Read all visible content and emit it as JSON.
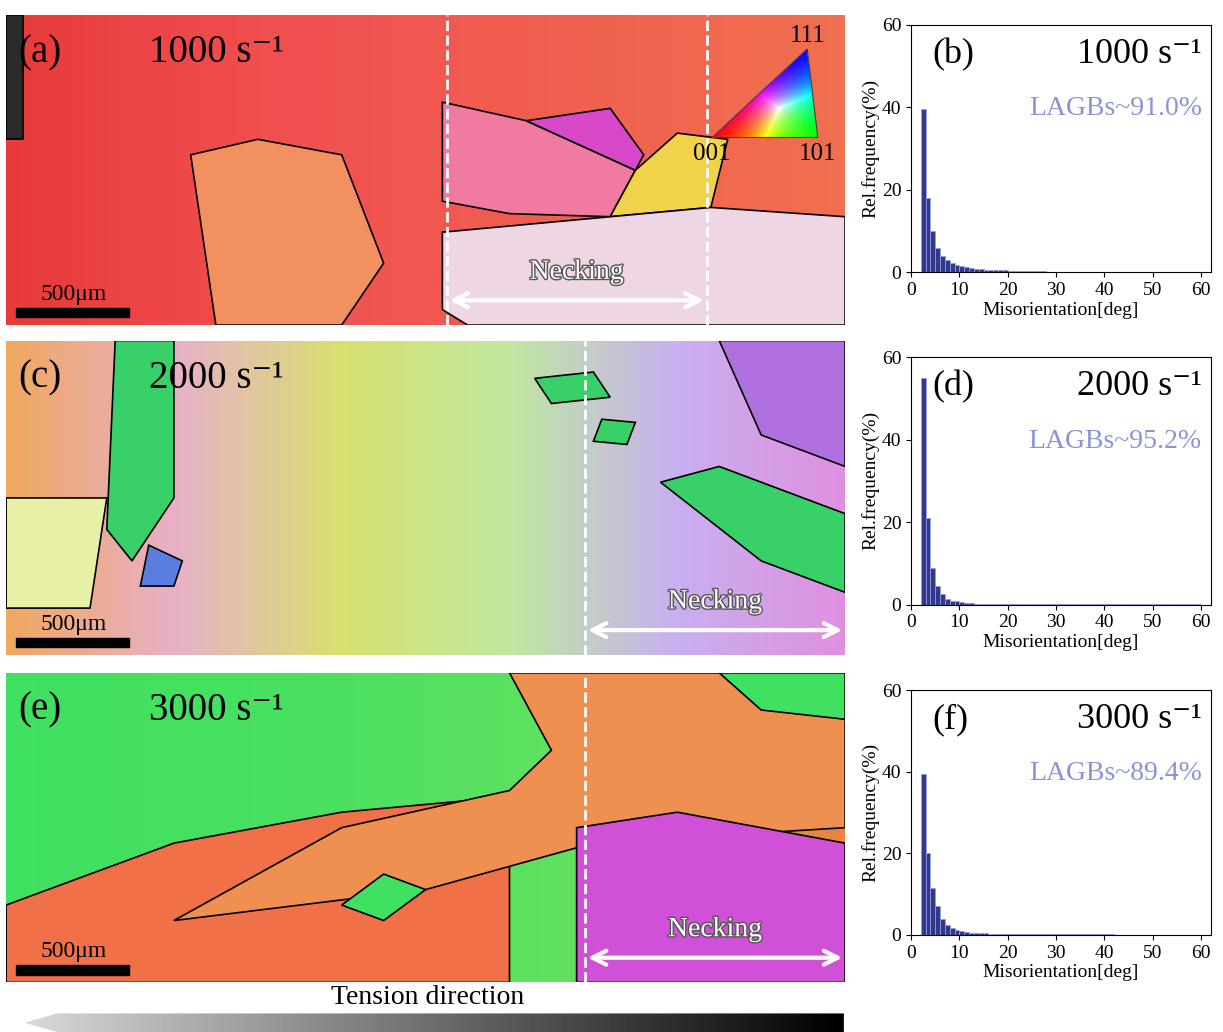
{
  "chart_data": [
    {
      "type": "histogram",
      "title": "(b)",
      "subtitle": "1000 s⁻¹",
      "annotation": "LAGBs~91.0%",
      "xlabel": "Misorientation[deg]",
      "ylabel": "Rel.frequency(%)",
      "bins": [
        2,
        3,
        4,
        5,
        6,
        7,
        8,
        9,
        10,
        11,
        12,
        13,
        14,
        15,
        16,
        17,
        18,
        19,
        20,
        21,
        22,
        23,
        24,
        25,
        26,
        27,
        28,
        29,
        30,
        31,
        32,
        33,
        34,
        35,
        36,
        37,
        38,
        39,
        40,
        41,
        42,
        43,
        44,
        45,
        46,
        47,
        48,
        49,
        50,
        51,
        52,
        53,
        54,
        55,
        56,
        57,
        58,
        59,
        60
      ],
      "values": [
        39.5,
        18,
        10,
        6,
        4,
        3,
        2.3,
        1.8,
        1.5,
        1.2,
        1.0,
        0.9,
        0.8,
        0.7,
        0.6,
        0.6,
        0.5,
        0.5,
        0.4,
        0.4,
        0.4,
        0.3,
        0.3,
        0.3,
        0.3,
        0.3,
        0.2,
        0.2,
        0.2,
        0.2,
        0.2,
        0.2,
        0.2,
        0.2,
        0.2,
        0.2,
        0.2,
        0.2,
        0.2,
        0.2,
        0.1,
        0.1,
        0.1,
        0.1,
        0.1,
        0.1,
        0.1,
        0.1,
        0.1,
        0.1,
        0.1,
        0.1,
        0.1,
        0.1,
        0.1,
        0.1,
        0.1,
        0.1
      ],
      "color": "#1a237e",
      "xlim": [
        0,
        62
      ],
      "xticks": [
        0,
        10,
        20,
        30,
        40,
        50,
        60
      ],
      "ylim": [
        0,
        60
      ],
      "yticks": [
        0,
        20,
        40,
        60
      ],
      "grid": false
    },
    {
      "type": "histogram",
      "title": "(d)",
      "subtitle": "2000 s⁻¹",
      "annotation": "LAGBs~95.2%",
      "xlabel": "Misorientation[deg]",
      "ylabel": "Rel.frequency(%)",
      "bins": [
        2,
        3,
        4,
        5,
        6,
        7,
        8,
        9,
        10,
        11,
        12,
        13,
        14,
        15,
        16,
        17,
        18,
        19,
        20,
        21,
        22,
        23,
        24,
        25,
        26,
        27,
        28,
        29,
        30,
        31,
        32,
        33,
        34,
        35,
        36,
        37,
        38,
        39,
        40,
        41,
        42,
        43,
        44,
        45,
        46,
        47,
        48,
        49,
        50,
        51,
        52,
        53,
        54,
        55,
        56,
        57,
        58,
        59,
        60
      ],
      "values": [
        55,
        21,
        9,
        4.5,
        2.5,
        1.5,
        1.0,
        0.8,
        0.6,
        0.5,
        0.4,
        0.3,
        0.3,
        0.2,
        0.2,
        0.2,
        0.2,
        0.1,
        0.1,
        0.1,
        0.1,
        0.1,
        0.1,
        0.1,
        0.1,
        0.1,
        0.1,
        0.1,
        0.1,
        0.1,
        0.1,
        0.1,
        0.1,
        0.1,
        0.1,
        0.1,
        0.1,
        0.1,
        0.1,
        0.1,
        0.1,
        0.1,
        0.1,
        0.1,
        0.1,
        0.1,
        0.1,
        0.1,
        0.1,
        0.1,
        0.1,
        0.1,
        0.1,
        0.1,
        0.1,
        0.1,
        0.1,
        0.1
      ],
      "color": "#1a237e",
      "xlim": [
        0,
        62
      ],
      "xticks": [
        0,
        10,
        20,
        30,
        40,
        50,
        60
      ],
      "ylim": [
        0,
        60
      ],
      "yticks": [
        0,
        20,
        40,
        60
      ],
      "grid": false
    },
    {
      "type": "histogram",
      "title": "(f)",
      "subtitle": "3000 s⁻¹",
      "annotation": "LAGBs~89.4%",
      "xlabel": "Misorientation[deg]",
      "ylabel": "Rel.frequency(%)",
      "bins": [
        2,
        3,
        4,
        5,
        6,
        7,
        8,
        9,
        10,
        11,
        12,
        13,
        14,
        15,
        16,
        17,
        18,
        19,
        20,
        21,
        22,
        23,
        24,
        25,
        26,
        27,
        28,
        29,
        30,
        31,
        32,
        33,
        34,
        35,
        36,
        37,
        38,
        39,
        40,
        41,
        42,
        43,
        44,
        45,
        46,
        47,
        48,
        49,
        50,
        51,
        52,
        53,
        54,
        55,
        56,
        57,
        58,
        59,
        60
      ],
      "values": [
        39.5,
        20,
        11.5,
        7,
        4,
        2.5,
        1.8,
        1.3,
        1.0,
        0.8,
        0.6,
        0.5,
        0.4,
        0.4,
        0.3,
        0.3,
        0.3,
        0.2,
        0.2,
        0.2,
        0.2,
        0.2,
        0.2,
        0.2,
        0.2,
        0.2,
        0.2,
        0.2,
        0.2,
        0.2,
        0.2,
        0.2,
        0.2,
        0.2,
        0.2,
        0.2,
        0.2,
        0.2,
        0.2,
        0.2,
        0.1,
        0.1,
        0.1,
        0.1,
        0.1,
        0.1,
        0.1,
        0.1,
        0.1,
        0.1,
        0.1,
        0.1,
        0.1,
        0.1,
        0.1,
        0.1,
        0.1,
        0.1
      ],
      "color": "#1a237e",
      "xlim": [
        0,
        62
      ],
      "xticks": [
        0,
        10,
        20,
        30,
        40,
        50,
        60
      ],
      "ylim": [
        0,
        60
      ],
      "yticks": [
        0,
        20,
        40,
        60
      ],
      "grid": false
    }
  ],
  "maps": [
    {
      "label": "(a)",
      "strain_rate": "1000 s⁻¹",
      "scale_bar": "500μm",
      "region": "Necking"
    },
    {
      "label": "(c)",
      "strain_rate": "2000 s⁻¹",
      "scale_bar": "500μm",
      "region": "Necking"
    },
    {
      "label": "(e)",
      "strain_rate": "3000 s⁻¹",
      "scale_bar": "500μm",
      "region": "Necking"
    }
  ],
  "ipf_key": [
    "111",
    "001",
    "101"
  ],
  "footer": "Tension direction"
}
